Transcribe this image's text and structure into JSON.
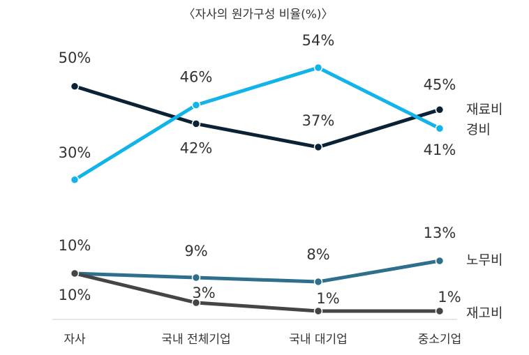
{
  "chart_data": {
    "type": "line",
    "title": "〈자사의 원가구성 비율(%)〉",
    "categories": [
      "자사",
      "국내 전체기업",
      "국내 대기업",
      "중소기업"
    ],
    "series": [
      {
        "name": "재료비",
        "values": [
          50,
          42,
          37,
          45
        ],
        "labels": [
          "50%",
          "42%",
          "37%",
          "45%"
        ],
        "color": "#0b2236"
      },
      {
        "name": "경비",
        "values": [
          30,
          46,
          54,
          41
        ],
        "labels": [
          "30%",
          "46%",
          "54%",
          "41%"
        ],
        "color": "#12b3e8"
      },
      {
        "name": "노무비",
        "values": [
          10,
          9,
          8,
          13
        ],
        "labels": [
          "10%",
          "9%",
          "8%",
          "13%"
        ],
        "color": "#2e6f8c"
      },
      {
        "name": "재고비",
        "values": [
          10,
          3,
          1,
          1
        ],
        "labels": [
          "10%",
          "3%",
          "1%",
          "1%"
        ],
        "color": "#454545"
      }
    ],
    "grid": false,
    "legend": "right, series names next to line ends"
  }
}
